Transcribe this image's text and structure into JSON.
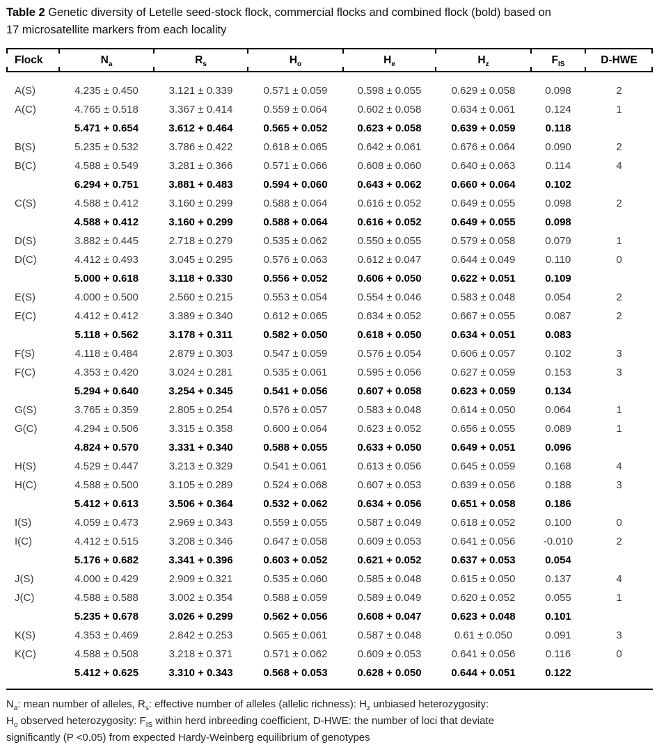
{
  "caption": {
    "label": "Table 2",
    "line1": " Genetic diversity of Letelle seed-stock flock, commercial flocks and combined flock (bold) based on",
    "line2": "17 microsatellite markers from each locality"
  },
  "table": {
    "columns": [
      {
        "name": "flock",
        "label": "Flock",
        "sub": ""
      },
      {
        "name": "na",
        "label": "N",
        "sub": "a"
      },
      {
        "name": "rs",
        "label": "R",
        "sub": "s"
      },
      {
        "name": "ho",
        "label": "H",
        "sub": "o"
      },
      {
        "name": "he",
        "label": "H",
        "sub": "e"
      },
      {
        "name": "hz",
        "label": "H",
        "sub": "z"
      },
      {
        "name": "fis",
        "label": "F",
        "sub": "IS"
      },
      {
        "name": "dhwe",
        "label": "D-HWE",
        "sub": ""
      }
    ],
    "rows": [
      {
        "bold": false,
        "cells": [
          "A(S)",
          "4.235 ± 0.450",
          "3.121 ± 0.339",
          "0.571 ± 0.059",
          "0.598 ± 0.055",
          "0.629 ± 0.058",
          "0.098",
          "2"
        ]
      },
      {
        "bold": false,
        "cells": [
          "A(C)",
          "4.765 ± 0.518",
          "3.367 ± 0.414",
          "0.559 ± 0.064",
          "0.602 ± 0.058",
          "0.634 ± 0.061",
          "0.124",
          "1"
        ]
      },
      {
        "bold": true,
        "cells": [
          "",
          "5.471 + 0.654",
          "3.612 + 0.464",
          "0.565 + 0.052",
          "0.623 + 0.058",
          "0.639 + 0.059",
          "0.118",
          ""
        ]
      },
      {
        "bold": false,
        "cells": [
          "B(S)",
          "5.235 ± 0.532",
          "3.786 ± 0.422",
          "0.618 ± 0.065",
          "0.642 ± 0.061",
          "0.676 ± 0.064",
          "0.090",
          "2"
        ]
      },
      {
        "bold": false,
        "cells": [
          "B(C)",
          "4.588 ± 0.549",
          "3.281 ± 0.366",
          "0.571 ± 0.066",
          "0.608 ± 0.060",
          "0.640 ± 0.063",
          "0.114",
          "4"
        ]
      },
      {
        "bold": true,
        "cells": [
          "",
          "6.294 + 0.751",
          "3.881 + 0.483",
          "0.594 + 0.060",
          "0.643 + 0.062",
          "0.660 + 0.064",
          "0.102",
          ""
        ]
      },
      {
        "bold": false,
        "cells": [
          "C(S)",
          "4.588 ± 0.412",
          "3.160 ± 0.299",
          "0.588 ± 0.064",
          "0.616 ± 0.052",
          "0.649 ± 0.055",
          "0.098",
          "2"
        ]
      },
      {
        "bold": true,
        "cells": [
          "",
          "4.588 + 0.412",
          "3.160 + 0.299",
          "0.588 + 0.064",
          "0.616 + 0.052",
          "0.649 + 0.055",
          "0.098",
          ""
        ]
      },
      {
        "bold": false,
        "cells": [
          "D(S)",
          "3.882 ± 0.445",
          "2.718 ± 0.279",
          "0.535 ± 0.062",
          "0.550 ± 0.055",
          "0.579 ± 0.058",
          "0.079",
          "1"
        ]
      },
      {
        "bold": false,
        "cells": [
          "D(C)",
          "4.412 ± 0.493",
          "3.045 ± 0.295",
          "0.576 ± 0.063",
          "0.612 ± 0.047",
          "0.644 ± 0.049",
          "0.110",
          "0"
        ]
      },
      {
        "bold": true,
        "cells": [
          "",
          "5.000 + 0.618",
          "3.118 + 0.330",
          "0.556 + 0.052",
          "0.606 + 0.050",
          "0.622 + 0.051",
          "0.109",
          ""
        ]
      },
      {
        "bold": false,
        "cells": [
          "E(S)",
          "4.000 ± 0.500",
          "2.560 ± 0.215",
          "0.553 ± 0.054",
          "0.554 ± 0.046",
          "0.583 ± 0.048",
          "0.054",
          "2"
        ]
      },
      {
        "bold": false,
        "cells": [
          "E(C)",
          "4.412 ± 0.412",
          "3.389 ± 0.340",
          "0.612 ± 0.065",
          "0.634 ± 0.052",
          "0.667 ± 0.055",
          "0.087",
          "2"
        ]
      },
      {
        "bold": true,
        "cells": [
          "",
          "5.118 + 0.562",
          "3.178 + 0.311",
          "0.582 + 0.050",
          "0.618 + 0.050",
          "0.634 + 0.051",
          "0.083",
          ""
        ]
      },
      {
        "bold": false,
        "cells": [
          "F(S)",
          "4.118 ± 0.484",
          "2.879 ± 0.303",
          "0.547 ± 0.059",
          "0.576 ± 0.054",
          "0.606 ± 0.057",
          "0.102",
          "3"
        ]
      },
      {
        "bold": false,
        "cells": [
          "F(C)",
          "4.353 ± 0.420",
          "3.024 ± 0.281",
          "0.535 ± 0.061",
          "0.595 ± 0.056",
          "0.627 ± 0.059",
          "0.153",
          "3"
        ]
      },
      {
        "bold": true,
        "cells": [
          "",
          "5.294 + 0.640",
          "3.254 + 0.345",
          "0.541 + 0.056",
          "0.607 + 0.058",
          "0.623 + 0.059",
          "0.134",
          ""
        ]
      },
      {
        "bold": false,
        "cells": [
          "G(S)",
          "3.765 ± 0.359",
          "2.805 ± 0.254",
          "0.576 ± 0.057",
          "0.583 ± 0.048",
          "0.614 ± 0.050",
          "0.064",
          "1"
        ]
      },
      {
        "bold": false,
        "cells": [
          "G(C)",
          "4.294 ± 0.506",
          "3.315 ± 0.358",
          "0.600 ± 0.064",
          "0.623 ± 0.052",
          "0.656 ± 0.055",
          "0.089",
          "1"
        ]
      },
      {
        "bold": true,
        "cells": [
          "",
          "4.824 + 0.570",
          "3.331 + 0.340",
          "0.588 + 0.055",
          "0.633 + 0.050",
          "0.649 + 0.051",
          "0.096",
          ""
        ]
      },
      {
        "bold": false,
        "cells": [
          "H(S)",
          "4.529 ± 0.447",
          "3.213 ± 0.329",
          "0.541 ± 0.061",
          "0.613 ± 0.056",
          "0.645 ± 0.059",
          "0.168",
          "4"
        ]
      },
      {
        "bold": false,
        "cells": [
          "H(C)",
          "4.588 ± 0.500",
          "3.105 ± 0.289",
          "0.524 ± 0.068",
          "0.607 ± 0.053",
          "0.639 ± 0.056",
          "0.188",
          "3"
        ]
      },
      {
        "bold": true,
        "cells": [
          "",
          "5.412 + 0.613",
          "3.506 + 0.364",
          "0.532 + 0.062",
          "0.634 + 0.056",
          "0.651 + 0.058",
          "0.186",
          ""
        ]
      },
      {
        "bold": false,
        "cells": [
          "I(S)",
          "4.059 ± 0.473",
          "2.969 ± 0.343",
          "0.559 ± 0.055",
          "0.587 ± 0.049",
          "0.618 ± 0.052",
          "0.100",
          "0"
        ]
      },
      {
        "bold": false,
        "cells": [
          "I(C)",
          "4.412 ± 0.515",
          "3.208 ± 0.346",
          "0.647 ± 0.058",
          "0.609 ± 0.053",
          "0.641 ± 0.056",
          "-0.010",
          "2"
        ]
      },
      {
        "bold": true,
        "cells": [
          "",
          "5.176 + 0.682",
          "3.341 + 0.396",
          "0.603 + 0.052",
          "0.621 + 0.052",
          "0.637 + 0.053",
          "0.054",
          ""
        ]
      },
      {
        "bold": false,
        "cells": [
          "J(S)",
          "4.000 ± 0.429",
          "2.909 ± 0.321",
          "0.535 ± 0.060",
          "0.585 ± 0.048",
          "0.615 ± 0.050",
          "0.137",
          "4"
        ]
      },
      {
        "bold": false,
        "cells": [
          "J(C)",
          "4.588 ± 0.588",
          "3.002 ± 0.354",
          "0.588 ± 0.059",
          "0.589 ± 0.049",
          "0.620 ± 0.052",
          "0.055",
          "1"
        ]
      },
      {
        "bold": true,
        "cells": [
          "",
          "5.235 + 0.678",
          "3.026 + 0.299",
          "0.562 + 0.056",
          "0.608 + 0.047",
          "0.623 + 0.048",
          "0.101",
          ""
        ]
      },
      {
        "bold": false,
        "cells": [
          "K(S)",
          "4.353 ± 0.469",
          "2.842 ± 0.253",
          "0.565 ± 0.061",
          "0.587 ± 0.048",
          "0.61 ± 0.050",
          "0.091",
          "3"
        ]
      },
      {
        "bold": false,
        "cells": [
          "K(C)",
          "4.588 ± 0.508",
          "3.218 ± 0.371",
          "0.571 ± 0.062",
          "0.609 ± 0.053",
          "0.641 ± 0.056",
          "0.116",
          "0"
        ]
      },
      {
        "bold": true,
        "cells": [
          "",
          "5.412 + 0.625",
          "3.310 + 0.343",
          "0.568 + 0.053",
          "0.628 + 0.050",
          "0.644 + 0.051",
          "0.122",
          ""
        ]
      }
    ]
  },
  "footnote": {
    "lines": [
      [
        {
          "t": "N"
        },
        {
          "s": "a"
        },
        {
          "t": ": mean number of alleles, R"
        },
        {
          "s": "s"
        },
        {
          "t": ": effective number of alleles (allelic richness): H"
        },
        {
          "s": "z"
        },
        {
          "t": " unbiased heterozygosity:"
        }
      ],
      [
        {
          "t": "H"
        },
        {
          "s": "o"
        },
        {
          "t": " observed heterozygosity: F"
        },
        {
          "s": "IS"
        },
        {
          "t": " within herd inbreeding coefficient, D-HWE: the number of loci that deviate"
        }
      ],
      [
        {
          "t": "significantly (P <0.05) from expected Hardy-Weinberg equilibrium of genotypes"
        }
      ]
    ]
  },
  "colors": {
    "text": "#000000",
    "body_text": "#3a3a3a",
    "rule": "#000000",
    "background": "#ffffff"
  }
}
